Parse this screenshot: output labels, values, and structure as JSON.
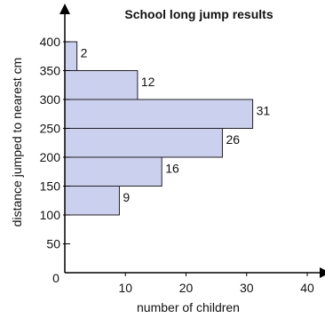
{
  "chart_data": {
    "type": "bar",
    "orientation": "horizontal",
    "title": "School long jump results",
    "xlabel": "number of children",
    "ylabel": "distance jumped to nearest cm",
    "xlim": [
      0,
      40
    ],
    "ylim": [
      0,
      400
    ],
    "x_ticks": [
      "10",
      "20",
      "30",
      "40"
    ],
    "y_ticks": [
      "50",
      "100",
      "150",
      "200",
      "250",
      "300",
      "350",
      "400"
    ],
    "origin_label": "0",
    "bins": [
      {
        "from": 100,
        "to": 150,
        "value": 9,
        "label": "9"
      },
      {
        "from": 150,
        "to": 200,
        "value": 16,
        "label": "16"
      },
      {
        "from": 200,
        "to": 250,
        "value": 26,
        "label": "26"
      },
      {
        "from": 250,
        "to": 300,
        "value": 31,
        "label": "31"
      },
      {
        "from": 300,
        "to": 350,
        "value": 12,
        "label": "12"
      },
      {
        "from": 350,
        "to": 400,
        "value": 2,
        "label": "2"
      }
    ],
    "grid": false,
    "colors": {
      "bar_fill": "#ccd0ef",
      "bar_stroke": "#222222",
      "axis": "#000000"
    }
  }
}
